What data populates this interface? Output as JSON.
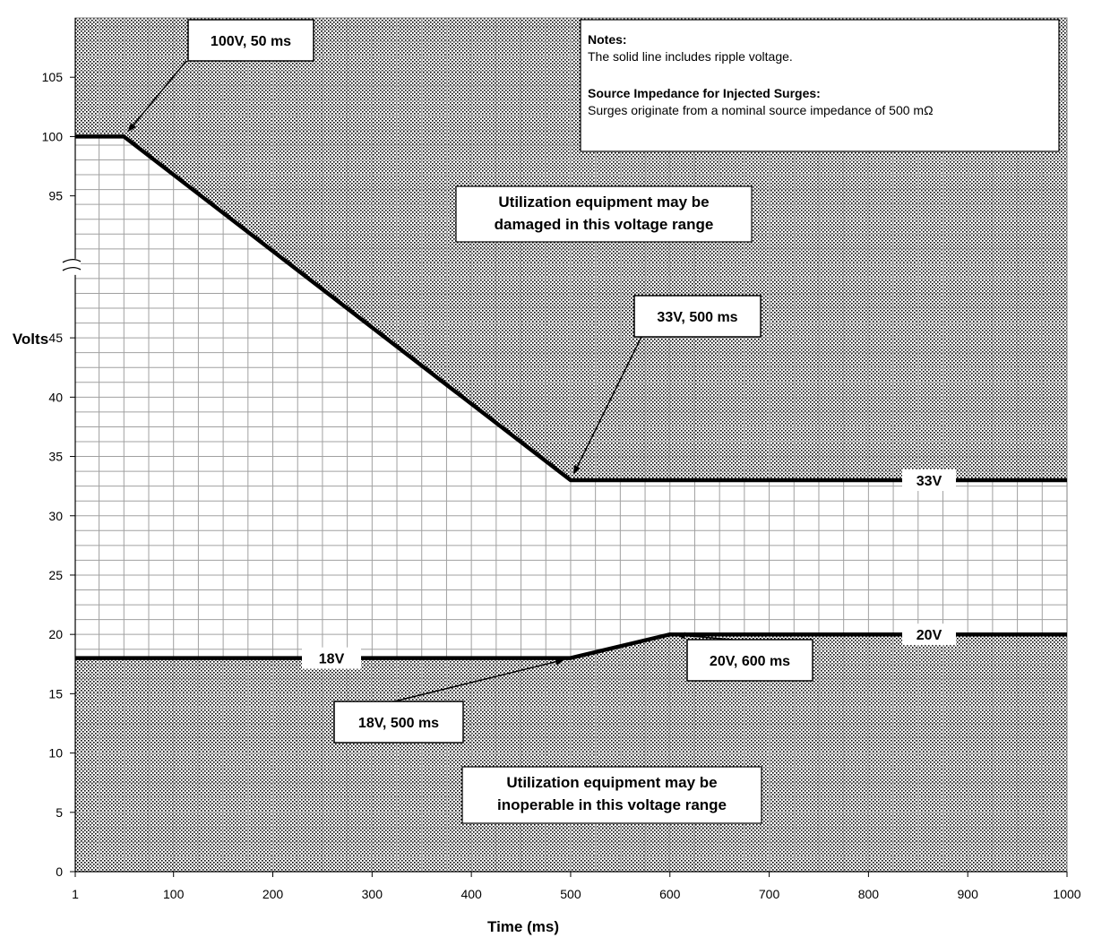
{
  "chart_data": {
    "type": "line",
    "xlabel": "Time (ms)",
    "ylabel": "Volts",
    "x_ticks": [
      "1",
      "100",
      "200",
      "300",
      "400",
      "500",
      "600",
      "700",
      "800",
      "900",
      "1000"
    ],
    "y_ticks": [
      "0",
      "5",
      "10",
      "15",
      "20",
      "25",
      "30",
      "35",
      "40",
      "45",
      "95",
      "100",
      "105"
    ],
    "y_axis_break": "between 45 and 95 (scale break)",
    "xlim": [
      1,
      1000
    ],
    "grid": true,
    "series": [
      {
        "role": "upper limit",
        "points": [
          [
            1,
            100
          ],
          [
            50,
            100
          ],
          [
            500,
            33
          ],
          [
            1000,
            33
          ]
        ],
        "line_label": "33V"
      },
      {
        "role": "lower limit",
        "points": [
          [
            1,
            18
          ],
          [
            500,
            18
          ],
          [
            600,
            20
          ],
          [
            1000,
            20
          ]
        ],
        "line_label_left": "18V",
        "line_label_right": "20V"
      }
    ],
    "annotations": [
      {
        "text": "100V, 50 ms",
        "x": 50,
        "y": 100
      },
      {
        "text": "33V, 500 ms",
        "x": 500,
        "y": 33
      },
      {
        "text": "18V, 500 ms",
        "x": 500,
        "y": 18
      },
      {
        "text": "20V, 600 ms",
        "x": 600,
        "y": 20
      }
    ],
    "regions": [
      {
        "text": [
          "Utilization equipment may be",
          "damaged in this voltage range"
        ],
        "where": "above upper limit"
      },
      {
        "text": [
          "Utilization equipment may be",
          "inoperable in this voltage range"
        ],
        "where": "below lower limit"
      }
    ],
    "notes": {
      "title": "Notes:",
      "line1": "The solid line includes ripple voltage.",
      "subtitle": "Source Impedance for Injected Surges:",
      "line2": "Surges originate from a nominal source impedance of 500 mΩ"
    },
    "colors": {
      "line": "#000000",
      "hatch_dot": "#000000",
      "grid": "#a0a0a0"
    }
  }
}
